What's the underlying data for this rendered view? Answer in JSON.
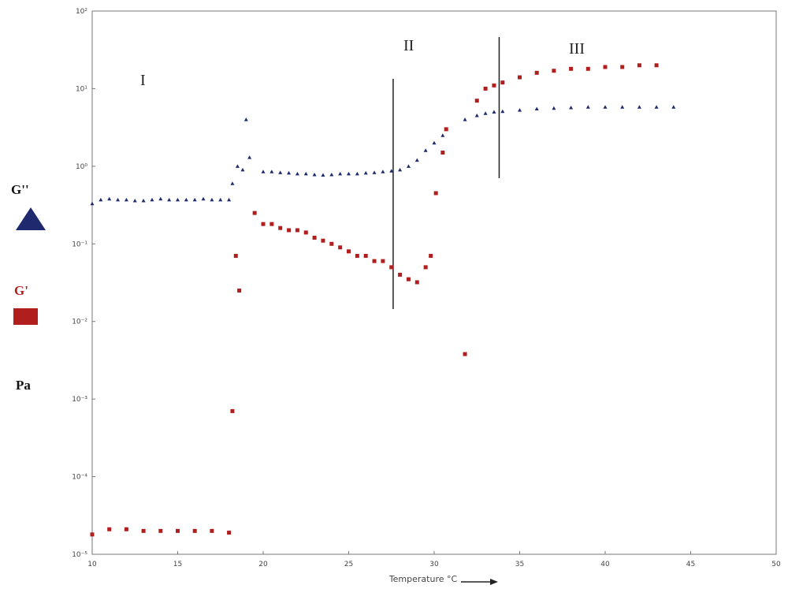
{
  "chart_data": {
    "type": "scatter",
    "x_label": "Temperature °C",
    "y_label": "Pa",
    "log_y": true,
    "legend": "left",
    "xlim": [
      10,
      50
    ],
    "xticks": [
      10,
      15,
      20,
      25,
      30,
      35,
      40,
      45,
      50
    ],
    "ylim": [
      1e-05,
      100
    ],
    "yticks": [
      {
        "value": 100,
        "label": "10²"
      },
      {
        "value": 10,
        "label": "10¹"
      },
      {
        "value": 1,
        "label": "10⁰"
      },
      {
        "value": 0.1,
        "label": "10⁻¹"
      },
      {
        "value": 0.01,
        "label": "10⁻²"
      },
      {
        "value": 0.001,
        "label": "10⁻³"
      },
      {
        "value": 0.0001,
        "label": "10⁻⁴"
      },
      {
        "value": 1e-05,
        "label": "10⁻⁵"
      }
    ],
    "regions": [
      "I",
      "II",
      "III"
    ],
    "dividers": [
      27.6,
      33.8
    ],
    "series": [
      {
        "name": "G''",
        "color": "#1f2a6e",
        "marker": "triangle",
        "x": [
          10,
          10.5,
          11,
          11.5,
          12,
          12.5,
          13,
          13.5,
          14,
          14.5,
          15,
          15.5,
          16,
          16.5,
          17,
          17.5,
          18,
          18.2,
          18.5,
          18.8,
          19,
          19.2,
          20,
          20.5,
          21,
          21.5,
          22,
          22.5,
          23,
          23.5,
          24,
          24.5,
          25,
          25.5,
          26,
          26.5,
          27,
          27.5,
          28,
          28.5,
          29,
          29.5,
          30,
          30.5,
          31.8,
          32.5,
          33,
          33.5,
          34,
          35,
          36,
          37,
          38,
          39,
          40,
          41,
          42,
          43,
          44
        ],
        "values": [
          0.33,
          0.37,
          0.38,
          0.37,
          0.37,
          0.36,
          0.36,
          0.37,
          0.38,
          0.37,
          0.37,
          0.37,
          0.37,
          0.38,
          0.37,
          0.37,
          0.37,
          0.6,
          1.0,
          0.9,
          4,
          1.3,
          0.85,
          0.85,
          0.83,
          0.82,
          0.8,
          0.8,
          0.78,
          0.77,
          0.78,
          0.8,
          0.8,
          0.8,
          0.82,
          0.83,
          0.85,
          0.87,
          0.9,
          1.0,
          1.2,
          1.6,
          2.0,
          2.5,
          4,
          4.5,
          4.8,
          5.0,
          5.1,
          5.3,
          5.5,
          5.6,
          5.7,
          5.8,
          5.8,
          5.8,
          5.8,
          5.8,
          5.8
        ]
      },
      {
        "name": "G'",
        "color": "#b01e1e",
        "marker": "square",
        "x": [
          10,
          11,
          12,
          13,
          14,
          15,
          16,
          17,
          18,
          18.2,
          18.4,
          18.6,
          19.5,
          20,
          20.5,
          21,
          21.5,
          22,
          22.5,
          23,
          23.5,
          24,
          24.5,
          25,
          25.5,
          26,
          26.5,
          27,
          27.5,
          28,
          28.5,
          29,
          29.5,
          29.8,
          30.1,
          30.5,
          30.7,
          31.8,
          32.5,
          33,
          33.5,
          34,
          35,
          36,
          37,
          38,
          39,
          40,
          41,
          42,
          43
        ],
        "values": [
          1.8e-05,
          2.1e-05,
          2.1e-05,
          2e-05,
          2e-05,
          2e-05,
          2e-05,
          2e-05,
          1.9e-05,
          0.0007,
          0.07,
          0.025,
          0.25,
          0.18,
          0.18,
          0.16,
          0.15,
          0.15,
          0.14,
          0.12,
          0.11,
          0.1,
          0.09,
          0.08,
          0.07,
          0.07,
          0.06,
          0.06,
          0.05,
          0.04,
          0.035,
          0.032,
          0.05,
          0.07,
          0.45,
          1.5,
          3,
          0.0038,
          7,
          10,
          11,
          12,
          14,
          16,
          17,
          18,
          18,
          19,
          19,
          20,
          20
        ]
      }
    ]
  }
}
